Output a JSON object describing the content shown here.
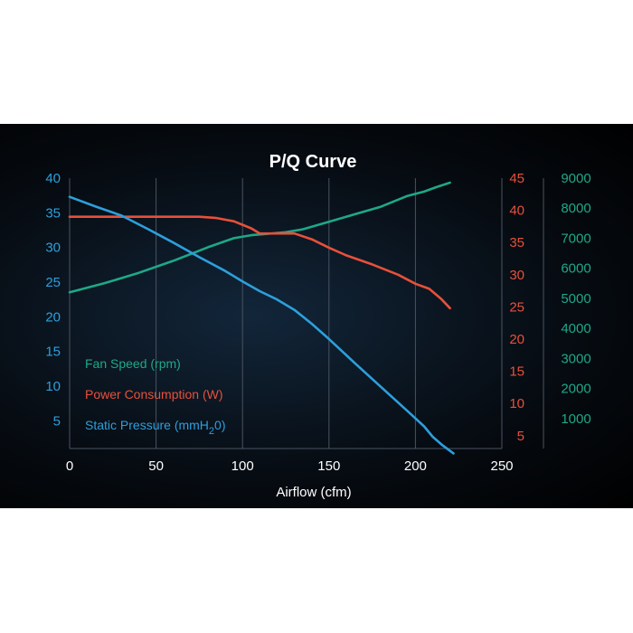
{
  "chart_data": {
    "type": "line",
    "title": "P/Q Curve",
    "xlabel": "Airflow (cfm)",
    "xlim": [
      0,
      250
    ],
    "x_ticks": [
      0,
      50,
      100,
      150,
      200,
      250
    ],
    "grid": "vertical",
    "legend_position": "bottom-left",
    "colors": {
      "fan_speed": "#1ea888",
      "power": "#e8503a",
      "pressure": "#2d9fdc",
      "grid": "#4a5360",
      "text": "#ffffff"
    },
    "axes": {
      "pressure": {
        "ylim": [
          1,
          40
        ],
        "ticks": [
          5,
          10,
          15,
          20,
          25,
          30,
          35,
          40
        ]
      },
      "power": {
        "ylim": [
          3,
          45
        ],
        "ticks": [
          5,
          10,
          15,
          20,
          25,
          30,
          35,
          40,
          45
        ]
      },
      "fan_speed": {
        "ylim": [
          0,
          9000
        ],
        "ticks": [
          1000,
          2000,
          3000,
          4000,
          5000,
          6000,
          7000,
          8000,
          9000
        ]
      }
    },
    "series": [
      {
        "name": "Fan Speed (rpm)",
        "axis": "fan_speed",
        "x": [
          0,
          20,
          40,
          60,
          80,
          95,
          105,
          115,
          125,
          135,
          150,
          165,
          180,
          195,
          205,
          212,
          220
        ],
        "y": [
          5200,
          5500,
          5850,
          6250,
          6700,
          7000,
          7100,
          7150,
          7200,
          7300,
          7550,
          7800,
          8050,
          8400,
          8550,
          8700,
          8850
        ]
      },
      {
        "name": "Power Consumption (W)",
        "axis": "power",
        "x": [
          0,
          25,
          50,
          75,
          85,
          95,
          105,
          110,
          120,
          130,
          140,
          150,
          160,
          175,
          190,
          200,
          208,
          215,
          220
        ],
        "y": [
          39,
          39,
          39,
          39,
          38.8,
          38.3,
          37.2,
          36.4,
          36.4,
          36.4,
          35.5,
          34.2,
          33,
          31.6,
          30,
          28.6,
          27.8,
          26.2,
          24.8
        ]
      },
      {
        "name": "Static Pressure (mmH20)",
        "legend_text": "Static Pressure (mmH",
        "legend_sub": "2",
        "legend_end": "0)",
        "axis": "pressure",
        "x": [
          0,
          15,
          30,
          45,
          60,
          75,
          90,
          100,
          110,
          120,
          130,
          140,
          150,
          165,
          180,
          195,
          205,
          210,
          215,
          222
        ],
        "y": [
          37.3,
          35.9,
          34.6,
          32.7,
          30.7,
          28.6,
          26.6,
          25.1,
          23.7,
          22.5,
          21,
          19,
          16.8,
          13.3,
          9.9,
          6.5,
          4.2,
          2.7,
          1.6,
          0.3
        ]
      }
    ]
  }
}
